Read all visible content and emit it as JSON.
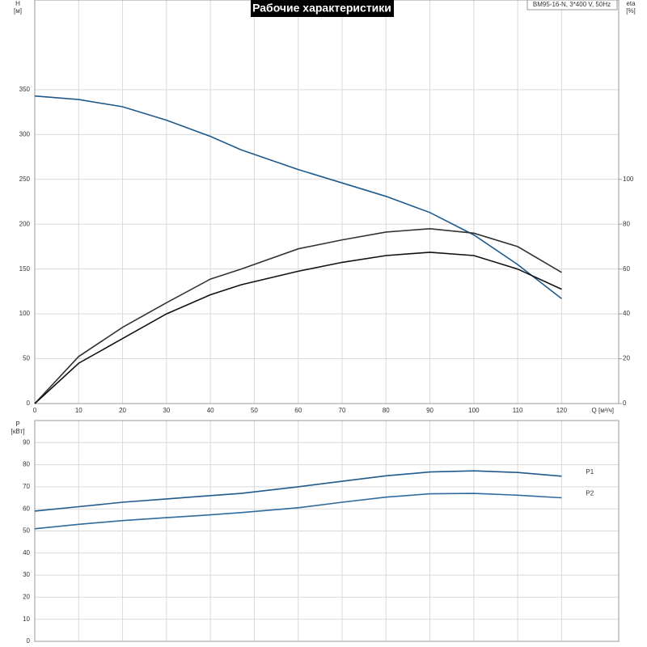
{
  "chart_data": [
    {
      "type": "line",
      "title": "Рабочие характеристики",
      "legend_text": "BM95-16-N, 3*400 V, 50Hz",
      "y_label": "H",
      "y_unit": "[м]",
      "y2_label": "eta",
      "y2_unit": "[%]",
      "x_label": "Q [м³/ч]",
      "x": [
        0,
        10,
        20,
        30,
        40,
        47,
        60,
        70,
        80,
        90,
        100,
        110,
        120
      ],
      "xlim": [
        0,
        133
      ],
      "xticks": [
        0,
        10,
        20,
        30,
        40,
        50,
        60,
        70,
        80,
        90,
        100,
        110,
        120
      ],
      "xtick_labels": true,
      "ylim": [
        0,
        450
      ],
      "yticks": [
        0,
        50,
        100,
        150,
        200,
        250,
        300,
        350
      ],
      "y2lim": [
        0,
        180
      ],
      "y2ticks": [
        0,
        20,
        40,
        60,
        80,
        100
      ],
      "grid": true,
      "series": [
        {
          "color": "#1f5a8c",
          "values": [
            343,
            339,
            331,
            316,
            298,
            283,
            261,
            246,
            231,
            213,
            188,
            155,
            117
          ]
        },
        {
          "color": "#333333",
          "axis": "y2",
          "values": [
            0,
            21,
            34,
            45,
            55.5,
            60,
            69,
            73,
            76.5,
            78,
            76,
            70,
            58.5
          ]
        },
        {
          "color": "#111111",
          "axis": "y2",
          "values": [
            0,
            18,
            29,
            40,
            48.5,
            53,
            59,
            63,
            66,
            67.5,
            66,
            60,
            51
          ]
        }
      ]
    },
    {
      "type": "line",
      "y_label": "P",
      "y_unit": "[кВт]",
      "x": [
        0,
        10,
        20,
        30,
        40,
        47,
        60,
        70,
        80,
        90,
        100,
        110,
        120
      ],
      "xlim": [
        0,
        133
      ],
      "xticks": [
        0,
        10,
        20,
        30,
        40,
        50,
        60,
        70,
        80,
        90,
        100,
        110,
        120
      ],
      "xtick_labels": false,
      "ylim": [
        0,
        100
      ],
      "yticks": [
        0,
        10,
        20,
        30,
        40,
        50,
        60,
        70,
        80,
        90
      ],
      "grid": true,
      "series": [
        {
          "name": "P1",
          "color": "#1f5a8c",
          "values": [
            59,
            61,
            63,
            64.5,
            66,
            67,
            70,
            72.5,
            75,
            76.7,
            77.2,
            76.5,
            74.8
          ]
        },
        {
          "name": "P2",
          "color": "#2f6a9c",
          "values": [
            51,
            53,
            54.7,
            56,
            57.3,
            58.3,
            60.5,
            63,
            65.3,
            66.8,
            67,
            66.2,
            65
          ]
        }
      ]
    }
  ]
}
